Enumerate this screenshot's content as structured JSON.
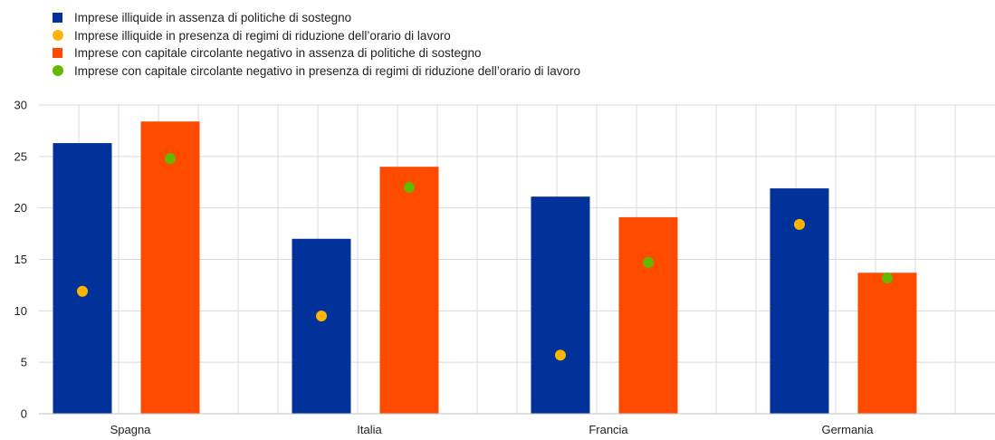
{
  "chart_data": {
    "type": "bar",
    "categories": [
      "Spagna",
      "Italia",
      "Francia",
      "Germania"
    ],
    "bar_series": [
      {
        "name": "Imprese illiquide in assenza di politiche di sostegno",
        "color": "#003299",
        "values": [
          26.3,
          17.0,
          21.1,
          21.9
        ]
      },
      {
        "name": "Imprese con capitale circolante negativo in assenza di politiche di sostegno",
        "color": "#ff4b00",
        "values": [
          28.4,
          24.0,
          19.1,
          13.7
        ]
      }
    ],
    "point_series": [
      {
        "name": "Impresе illiquide in presenza di regimi di riduzione dell’orario di lavoro",
        "color": "#ffb400",
        "values": [
          11.9,
          9.5,
          5.7,
          18.4
        ]
      },
      {
        "name": "Imprese con capitale circolante negativo in presenza di regimi di riduzione dell’orario di lavoro",
        "color": "#65b800",
        "values": [
          24.8,
          22.0,
          14.7,
          13.2
        ]
      }
    ],
    "ylim": [
      0,
      30
    ],
    "yticks": [
      0,
      5,
      10,
      15,
      20,
      25,
      30
    ],
    "grid": true,
    "legend_position": "top-left"
  },
  "legend": [
    {
      "label": "Imprese illiquide in assenza di politiche di sostegno",
      "shape": "square",
      "color": "#003299"
    },
    {
      "label": "Imprese illiquide in presenza di regimi di riduzione dell’orario di lavoro",
      "shape": "dot",
      "color": "#ffb400"
    },
    {
      "label": "Imprese con capitale circolante negativo in assenza di politiche di sostegno",
      "shape": "square",
      "color": "#ff4b00"
    },
    {
      "label": "Imprese con capitale circolante negativo in presenza di regimi di riduzione dell’orario di lavoro",
      "shape": "dot",
      "color": "#65b800"
    }
  ]
}
